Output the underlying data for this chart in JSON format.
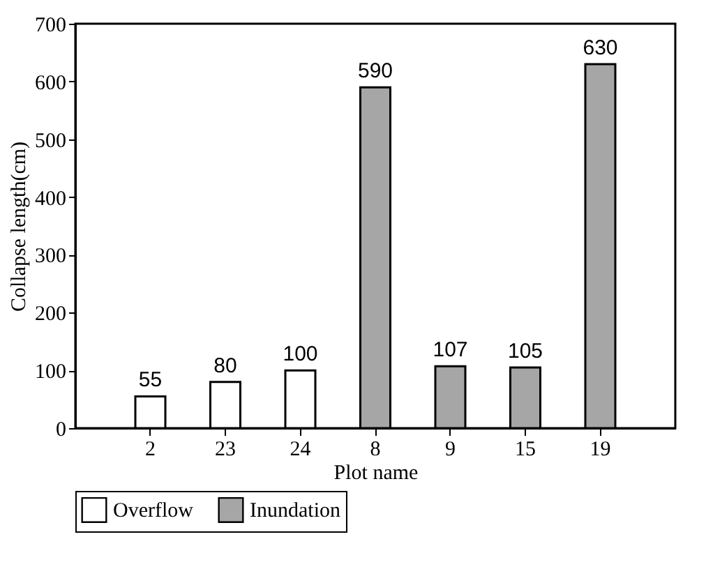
{
  "chart_data": {
    "type": "bar",
    "xlabel": "Plot name",
    "ylabel": "Collapse length(cm)",
    "categories": [
      "2",
      "23",
      "24",
      "8",
      "9",
      "15",
      "19"
    ],
    "series": [
      {
        "name": "Overflow",
        "color": "#ffffff",
        "values": [
          55,
          80,
          100,
          null,
          null,
          null,
          null
        ]
      },
      {
        "name": "Inundation",
        "color": "#a6a6a6",
        "values": [
          null,
          null,
          null,
          590,
          107,
          105,
          630
        ]
      }
    ],
    "ylim": [
      0,
      700
    ],
    "yticks": [
      0,
      100,
      200,
      300,
      400,
      500,
      600,
      700
    ],
    "data_labels": true,
    "legend": "bottom",
    "grid": false
  }
}
